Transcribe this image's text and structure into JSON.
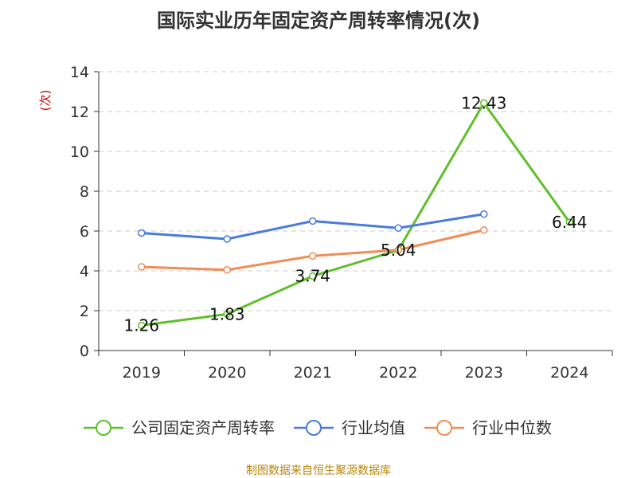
{
  "chart_data": {
    "type": "line",
    "title": "国际实业历年固定资产周转率情况(次)",
    "xlabel": "",
    "ylabel": "(次)",
    "categories": [
      "2019",
      "2020",
      "2021",
      "2022",
      "2023",
      "2024"
    ],
    "ylim": [
      0,
      14
    ],
    "yticks": [
      0,
      2,
      4,
      6,
      8,
      10,
      12,
      14
    ],
    "grid": true,
    "legend_position": "bottom",
    "series": [
      {
        "name": "公司固定资产周转率",
        "color": "#5fbf2a",
        "values": [
          1.26,
          1.83,
          3.74,
          5.04,
          12.43,
          6.44
        ],
        "labels": [
          "1.26",
          "1.83",
          "3.74",
          "5.04",
          "12.43",
          "6.44"
        ]
      },
      {
        "name": "行业均值",
        "color": "#4a7bdc",
        "values": [
          5.9,
          5.6,
          6.5,
          6.15,
          6.85,
          null
        ]
      },
      {
        "name": "行业中位数",
        "color": "#f08c55",
        "values": [
          4.2,
          4.05,
          4.75,
          5.05,
          6.05,
          null
        ]
      }
    ],
    "source": "制图数据来自恒生聚源数据库"
  },
  "colors": {
    "axis": "#333333",
    "grid": "#cccccc",
    "ylabel": "#cc0000",
    "source": "#b8860b"
  }
}
